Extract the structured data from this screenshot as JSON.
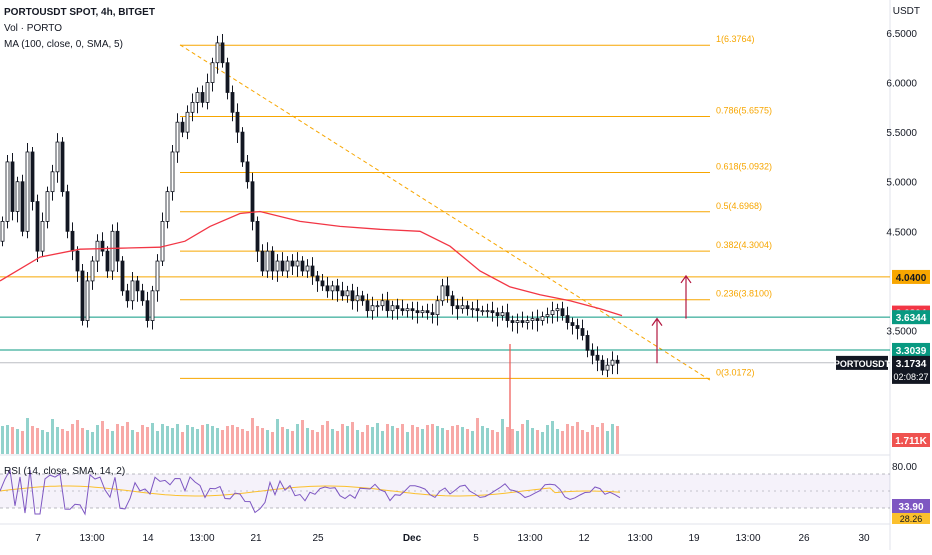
{
  "header": {
    "symbol_line": "PORTOUSDT SPOT, 4h, BITGET",
    "volume_label": "Vol · PORTO",
    "ma_label": "MA (100, close, 0, SMA, 5)",
    "axis_unit": "USDT"
  },
  "rsi": {
    "label": "RSI (14, close, SMA, 14, 2)",
    "ticks": [
      "80.00"
    ],
    "value_badge": "33.90",
    "ma_badge": "28.26"
  },
  "colors": {
    "up": "#26a69a",
    "down": "#ef5350",
    "candle": "#131722",
    "fib": "#f7a600",
    "ma": "#f23645",
    "rsi_line": "#7e57c2",
    "rsi_ma": "#fbc02d",
    "support": "#089981"
  },
  "chart_data": {
    "type": "candlestick",
    "title": "PORTOUSDT SPOT, 4h, BITGET",
    "xlabel": "",
    "ylabel": "USDT",
    "ylim": [
      2.9,
      6.55
    ],
    "grid": false,
    "x_tick_labels": [
      "7",
      "13:00",
      "14",
      "13:00",
      "21",
      "25",
      "Dec",
      "5",
      "13:00",
      "12",
      "13:00",
      "19",
      "13:00",
      "26",
      "30"
    ],
    "y_tick_labels": [
      "6.5000",
      "6.0000",
      "5.5000",
      "5.0000",
      "4.5000",
      "3.5000"
    ],
    "price_path": [
      [
        0,
        4.4
      ],
      [
        5,
        4.6
      ],
      [
        10,
        5.2
      ],
      [
        15,
        4.7
      ],
      [
        20,
        5.0
      ],
      [
        25,
        4.5
      ],
      [
        30,
        5.3
      ],
      [
        35,
        4.8
      ],
      [
        40,
        4.3
      ],
      [
        45,
        4.6
      ],
      [
        50,
        4.9
      ],
      [
        55,
        5.1
      ],
      [
        60,
        5.4
      ],
      [
        65,
        4.9
      ],
      [
        70,
        4.5
      ],
      [
        75,
        4.3
      ],
      [
        80,
        4.1
      ],
      [
        85,
        3.6
      ],
      [
        90,
        4.0
      ],
      [
        95,
        4.2
      ],
      [
        100,
        4.4
      ],
      [
        105,
        4.3
      ],
      [
        110,
        4.1
      ],
      [
        115,
        4.5
      ],
      [
        120,
        4.2
      ],
      [
        125,
        3.9
      ],
      [
        130,
        3.8
      ],
      [
        135,
        4.0
      ],
      [
        140,
        3.9
      ],
      [
        145,
        3.8
      ],
      [
        150,
        3.6
      ],
      [
        155,
        3.9
      ],
      [
        160,
        4.2
      ],
      [
        165,
        4.6
      ],
      [
        170,
        4.9
      ],
      [
        175,
        5.3
      ],
      [
        180,
        5.6
      ],
      [
        185,
        5.5
      ],
      [
        190,
        5.7
      ],
      [
        195,
        5.8
      ],
      [
        200,
        5.9
      ],
      [
        205,
        5.8
      ],
      [
        210,
        6.0
      ],
      [
        215,
        6.2
      ],
      [
        220,
        6.4
      ],
      [
        225,
        6.2
      ],
      [
        230,
        5.9
      ],
      [
        235,
        5.7
      ],
      [
        240,
        5.5
      ],
      [
        245,
        5.2
      ],
      [
        250,
        5.0
      ],
      [
        255,
        4.6
      ],
      [
        260,
        4.3
      ],
      [
        265,
        4.1
      ],
      [
        270,
        4.3
      ],
      [
        275,
        4.1
      ],
      [
        280,
        4.2
      ],
      [
        285,
        4.1
      ],
      [
        290,
        4.2
      ],
      [
        295,
        4.15
      ],
      [
        300,
        4.2
      ],
      [
        305,
        4.1
      ],
      [
        310,
        4.15
      ],
      [
        315,
        4.05
      ],
      [
        320,
        4.0
      ],
      [
        325,
        3.95
      ],
      [
        330,
        3.9
      ],
      [
        335,
        3.95
      ],
      [
        340,
        3.9
      ],
      [
        345,
        3.85
      ],
      [
        350,
        3.9
      ],
      [
        355,
        3.8
      ],
      [
        360,
        3.85
      ],
      [
        365,
        3.8
      ],
      [
        370,
        3.7
      ],
      [
        375,
        3.75
      ],
      [
        380,
        3.75
      ],
      [
        385,
        3.8
      ],
      [
        390,
        3.7
      ],
      [
        395,
        3.75
      ],
      [
        400,
        3.72
      ],
      [
        405,
        3.7
      ],
      [
        410,
        3.72
      ],
      [
        415,
        3.7
      ],
      [
        420,
        3.68
      ],
      [
        425,
        3.7
      ],
      [
        430,
        3.68
      ],
      [
        435,
        3.66
      ],
      [
        440,
        3.8
      ],
      [
        445,
        3.95
      ],
      [
        450,
        3.85
      ],
      [
        455,
        3.75
      ],
      [
        460,
        3.72
      ],
      [
        465,
        3.75
      ],
      [
        470,
        3.72
      ],
      [
        475,
        3.72
      ],
      [
        480,
        3.7
      ],
      [
        485,
        3.7
      ],
      [
        490,
        3.7
      ],
      [
        495,
        3.68
      ],
      [
        500,
        3.65
      ],
      [
        505,
        3.68
      ],
      [
        510,
        3.6
      ],
      [
        515,
        3.58
      ],
      [
        520,
        3.6
      ],
      [
        525,
        3.58
      ],
      [
        530,
        3.6
      ],
      [
        535,
        3.62
      ],
      [
        540,
        3.6
      ],
      [
        545,
        3.64
      ],
      [
        550,
        3.66
      ],
      [
        555,
        3.7
      ],
      [
        560,
        3.72
      ],
      [
        565,
        3.65
      ],
      [
        570,
        3.58
      ],
      [
        575,
        3.55
      ],
      [
        580,
        3.52
      ],
      [
        585,
        3.45
      ],
      [
        590,
        3.3
      ],
      [
        595,
        3.25
      ],
      [
        600,
        3.2
      ],
      [
        605,
        3.1
      ],
      [
        610,
        3.15
      ],
      [
        615,
        3.2
      ],
      [
        620,
        3.17
      ]
    ],
    "ma_100": [
      [
        0,
        4.0
      ],
      [
        40,
        4.24
      ],
      [
        80,
        4.32
      ],
      [
        120,
        4.33
      ],
      [
        160,
        4.34
      ],
      [
        185,
        4.4
      ],
      [
        210,
        4.55
      ],
      [
        240,
        4.68
      ],
      [
        260,
        4.7
      ],
      [
        300,
        4.6
      ],
      [
        340,
        4.55
      ],
      [
        380,
        4.52
      ],
      [
        420,
        4.5
      ],
      [
        450,
        4.35
      ],
      [
        480,
        4.1
      ],
      [
        510,
        3.94
      ],
      [
        540,
        3.86
      ],
      [
        570,
        3.8
      ],
      [
        600,
        3.72
      ],
      [
        622,
        3.65
      ]
    ],
    "fibonacci": [
      {
        "ratio": "0",
        "price": 3.0172,
        "label": "0(3.0172)"
      },
      {
        "ratio": "0.236",
        "price": 3.81,
        "label": "0.236(3.8100)"
      },
      {
        "ratio": "0.382",
        "price": 4.3004,
        "label": "0.382(4.3004)"
      },
      {
        "ratio": "0.5",
        "price": 4.6968,
        "label": "0.5(4.6968)"
      },
      {
        "ratio": "0.618",
        "price": 5.0932,
        "label": "0.618(5.0932)"
      },
      {
        "ratio": "0.786",
        "price": 5.6575,
        "label": "0.786(5.6575)"
      },
      {
        "ratio": "1",
        "price": 6.3764,
        "label": "1(6.3764)"
      }
    ],
    "horizontal_lines": [
      {
        "price": 4.04,
        "badge": "4.0400",
        "style": "fib"
      },
      {
        "price": 3.6344,
        "badge": "3.6344",
        "style": "support"
      },
      {
        "price": 3.3039,
        "badge": "3.3039",
        "style": "support"
      }
    ],
    "badges": {
      "ma": "3.6804",
      "symbol": "PORTOUSDT",
      "last_price": "3.1734",
      "countdown": "02:08:27",
      "volume": "1.711K"
    },
    "trend_line": {
      "from": [
        180,
        6.38
      ],
      "to": [
        710,
        3.0
      ]
    },
    "arrows": [
      {
        "x": 657,
        "from": 3.17,
        "to": 3.62
      },
      {
        "x": 686,
        "from": 3.62,
        "to": 4.05
      }
    ]
  }
}
